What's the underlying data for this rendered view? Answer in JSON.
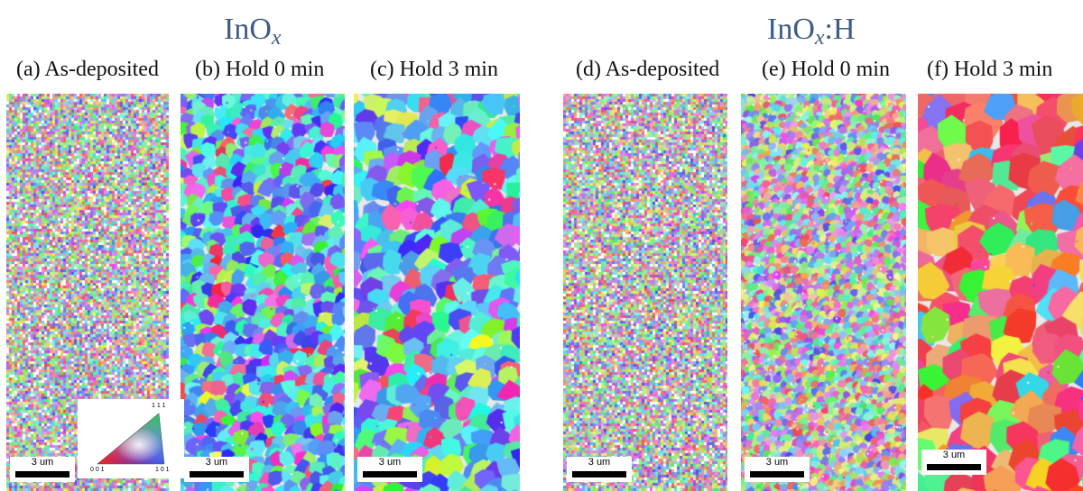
{
  "groups": {
    "left": {
      "title_main": "InO",
      "title_sub": "x",
      "title_suffix": ""
    },
    "right": {
      "title_main": "InO",
      "title_sub": "x",
      "title_suffix": ":H"
    }
  },
  "panels": [
    {
      "label": "(a) As-deposited",
      "scale_bar": "3 um"
    },
    {
      "label": "(b) Hold 0 min",
      "scale_bar": "3 um"
    },
    {
      "label": "(c) Hold 3 min",
      "scale_bar": "3 um"
    },
    {
      "label": "(d) As-deposited",
      "scale_bar": "3 um"
    },
    {
      "label": "(e) Hold 0 min",
      "scale_bar": "3 um"
    },
    {
      "label": "(f) Hold 3 min",
      "scale_bar": "3 um"
    }
  ],
  "color_key": {
    "top": "1 1 1",
    "left": "0 0 1",
    "right": "1 0 1"
  }
}
